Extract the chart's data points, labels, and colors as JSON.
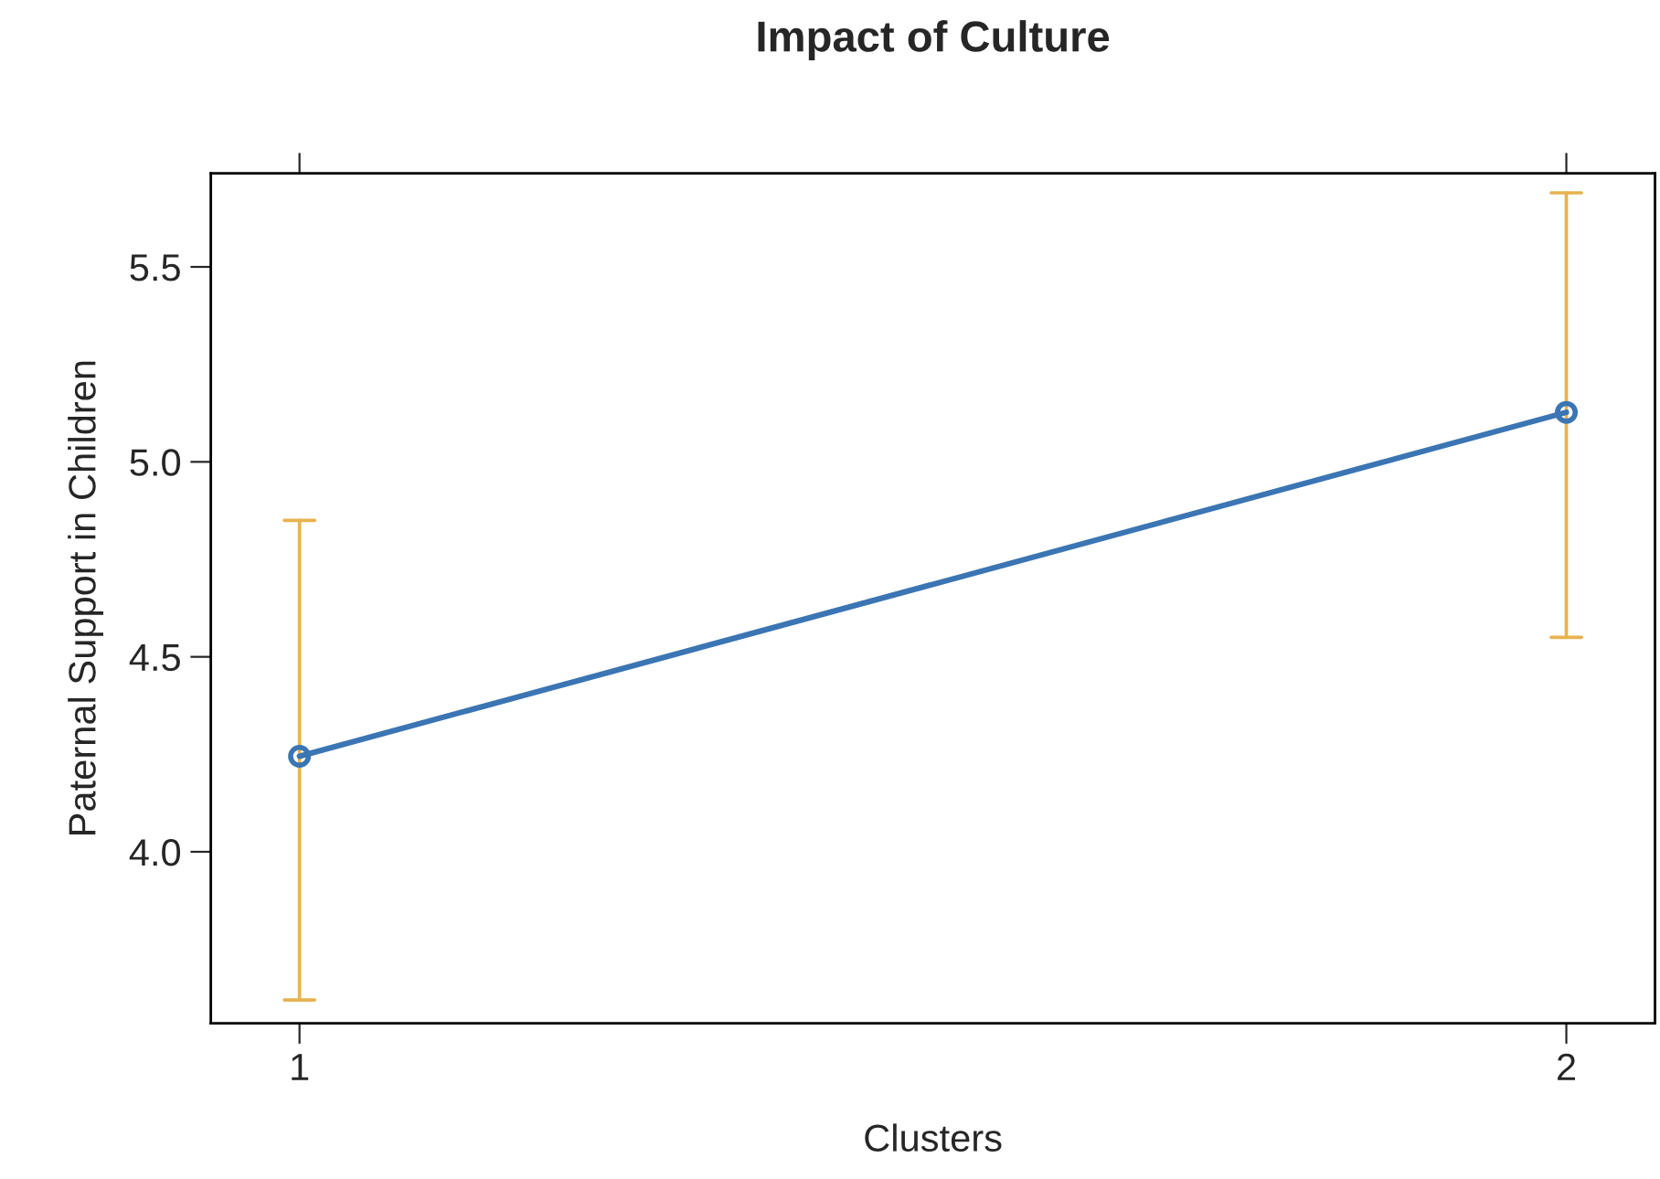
{
  "chart_data": {
    "type": "line",
    "title": "Impact of Culture",
    "xlabel": "Clusters",
    "ylabel": "Paternal Support in Children",
    "x": [
      1,
      2
    ],
    "series": [
      {
        "color": "#3b75b3",
        "values": [
          4.245,
          5.127
        ],
        "errors": [
          [
            3.62,
            4.85
          ],
          [
            4.55,
            5.69
          ]
        ]
      }
    ],
    "xlim": [
      0.93,
      2.07
    ],
    "xticks": [
      1,
      2
    ],
    "ylim": [
      3.56,
      5.74
    ],
    "yticks": [
      {
        "value": 4.0,
        "label": "4.0"
      },
      {
        "value": 4.5,
        "label": "4.5"
      },
      {
        "value": 5.0,
        "label": "5.0"
      },
      {
        "value": 5.5,
        "label": "5.5"
      }
    ],
    "grid": false,
    "legend": false,
    "marker": "circle",
    "line_style": "solid"
  }
}
